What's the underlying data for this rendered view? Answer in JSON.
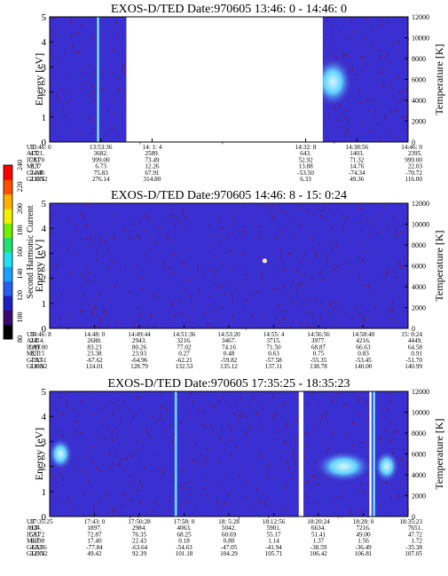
{
  "colors": {
    "background": "#3a2fd0",
    "speckle": "#7a1a3a",
    "band_cyan": "#40c8ff",
    "band_light": "#b8f0ff",
    "gap": "#ffffff"
  },
  "colorbar": {
    "title": "Second Harmonic Current",
    "ticks": [
      "240",
      "220",
      "200",
      "180",
      "160",
      "140",
      "120",
      "100",
      "80"
    ],
    "colors": [
      "#000000",
      "#3a0a70",
      "#2020c0",
      "#2a5ef0",
      "#1aa0ff",
      "#20e0f0",
      "#20e070",
      "#70f000",
      "#f0f000",
      "#ffb000",
      "#ff5000",
      "#ff0000"
    ]
  },
  "chart_data": [
    {
      "type": "heatmap",
      "title": "EXOS-D/TED   Date:970605  13:46: 0 - 14:46: 0",
      "ylabel": "Energy [eV]",
      "y2label": "Temperature [K]",
      "ylim": [
        0,
        5
      ],
      "y2lim": [
        0,
        12000
      ],
      "yticks": [
        "0",
        "1",
        "2",
        "3",
        "4",
        "5"
      ],
      "y2ticks": [
        "0",
        "2000",
        "4000",
        "6000",
        "8000",
        "10000",
        "12000"
      ],
      "gaps": [
        [
          0.214,
          0.762
        ]
      ],
      "vlines": [
        0.135
      ],
      "blobs": [
        {
          "x": 0.79,
          "y": 2.4,
          "size": "large"
        }
      ],
      "rows": [
        {
          "label": "UT",
          "values": [
            "13:46: 0",
            "13:53:36",
            "14: 1: 4",
            "",
            "",
            "14:32: 8",
            "14:38:56",
            "14:46: 0"
          ]
        },
        {
          "label": "ALT",
          "values": [
            "4721.",
            "3682.",
            "2589.",
            "",
            "",
            "643.",
            "1403.",
            "2395."
          ]
        },
        {
          "label": "ILAT",
          "values": [
            "78.70",
            "999.00",
            "73.49",
            "",
            "",
            "52.92",
            "71.32",
            "999.00"
          ]
        },
        {
          "label": "MLT",
          "values": [
            "2.57",
            "6.73",
            "12.26",
            "",
            "",
            "13.88",
            "14.76",
            "22.03"
          ]
        },
        {
          "label": "GLAT",
          "values": [
            "74.46",
            "75.83",
            "67.91",
            "",
            "",
            "-53.50",
            "-74.34",
            "-70.72"
          ]
        },
        {
          "label": "GLON",
          "values": [
            "236.52",
            "276.14",
            "314.80",
            "",
            "",
            "6.33",
            "49.36",
            "116.00"
          ]
        }
      ]
    },
    {
      "type": "heatmap",
      "title": "EXOS-D/TED   Date:970605  14:46: 8 - 15: 0:24",
      "ylabel": "Energy [eV]",
      "y2label": "Temperature [K]",
      "ylim": [
        0,
        5
      ],
      "y2lim": [
        0,
        12000
      ],
      "yticks": [
        "0",
        "1",
        "2",
        "3",
        "4",
        "5"
      ],
      "y2ticks": [
        "0",
        "2000",
        "4000",
        "6000",
        "8000",
        "10000",
        "12000"
      ],
      "gaps": [],
      "vlines": [],
      "blobs": [
        {
          "x": 0.6,
          "y": 2.7,
          "size": "dot"
        }
      ],
      "rows": [
        {
          "label": "UT",
          "values": [
            "14:46: 8",
            "14:48: 0",
            "14:49:44",
            "14:51:36",
            "14:53:20",
            "14:55: 4",
            "14:56:56",
            "14:58:40",
            "15: 0:24"
          ]
        },
        {
          "label": "ALT",
          "values": [
            "2414.",
            "2688.",
            "2943.",
            "3216.",
            "3467.",
            "3715.",
            "3977.",
            "4216.",
            "4449."
          ]
        },
        {
          "label": "ILAT",
          "values": [
            "999.00",
            "83.23",
            "80.26",
            "77.02",
            "74.16",
            "71.50",
            "68.87",
            "66.63",
            "64.58"
          ]
        },
        {
          "label": "MLT",
          "values": [
            "22.15",
            "23.38",
            "23.93",
            "0.27",
            "0.48",
            "0.63",
            "0.75",
            "0.83",
            "0.91"
          ]
        },
        {
          "label": "GLAT",
          "values": [
            "-70.51",
            "-67.62",
            "-64.96",
            "-62.21",
            "-59.82",
            "-57.58",
            "-55.35",
            "-53.45",
            "-51.70"
          ]
        },
        {
          "label": "GLON",
          "values": [
            "116.62",
            "124.01",
            "128.79",
            "132.53",
            "135.12",
            "137.11",
            "138.78",
            "140.00",
            "140.99"
          ]
        }
      ]
    },
    {
      "type": "heatmap",
      "title": "EXOS-D/TED   Date:970605  17:35:25 - 18:35:23",
      "ylabel": "Energy [eV]",
      "y2label": "Temperature [K]",
      "ylim": [
        0,
        5
      ],
      "y2lim": [
        0,
        12000
      ],
      "yticks": [
        "0",
        "1",
        "2",
        "3",
        "4",
        "5"
      ],
      "y2ticks": [
        "0",
        "2000",
        "4000",
        "6000",
        "8000",
        "10000",
        "12000"
      ],
      "gaps": [
        [
          0.695,
          0.708
        ],
        [
          0.892,
          0.898
        ]
      ],
      "vlines": [
        0.352,
        0.905
      ],
      "blobs": [
        {
          "x": 0.03,
          "y": 2.5,
          "size": "medium"
        },
        {
          "x": 0.82,
          "y": 2.0,
          "size": "wide"
        },
        {
          "x": 0.94,
          "y": 2.0,
          "size": "medium"
        }
      ],
      "rows": [
        {
          "label": "UT",
          "values": [
            "17:35:25",
            "17:43: 0",
            "17:50:28",
            "17:58: 0",
            "18: 5:28",
            "18:12:56",
            "18:20:24",
            "18:28: 0",
            "18:35:23"
          ]
        },
        {
          "label": "ALT",
          "values": [
            "924.",
            "1897.",
            "2984.",
            "4063.",
            "5042.",
            "5901.",
            "6634.",
            "7216.",
            "7651."
          ]
        },
        {
          "label": "ILAT",
          "values": [
            "53.72",
            "72.87",
            "76.35",
            "68.25",
            "60.69",
            "55.17",
            "51.41",
            "49.00",
            "47.72"
          ]
        },
        {
          "label": "MLT",
          "values": [
            "14.98",
            "17.40",
            "22.43",
            "0.18",
            "0.80",
            "1.14",
            "1.37",
            "1.56",
            "1.72"
          ]
        },
        {
          "label": "GLAT",
          "values": [
            "-65.36",
            "-77.84",
            "-63.64",
            "-54.63",
            "-47.05",
            "-41.94",
            "-38.59",
            "-36.49",
            "-35.38"
          ]
        },
        {
          "label": "GLON",
          "values": [
            "329.32",
            "49.42",
            "92.39",
            "101.18",
            "104.29",
            "105.71",
            "106.42",
            "106.81",
            "107.05"
          ]
        }
      ]
    }
  ]
}
